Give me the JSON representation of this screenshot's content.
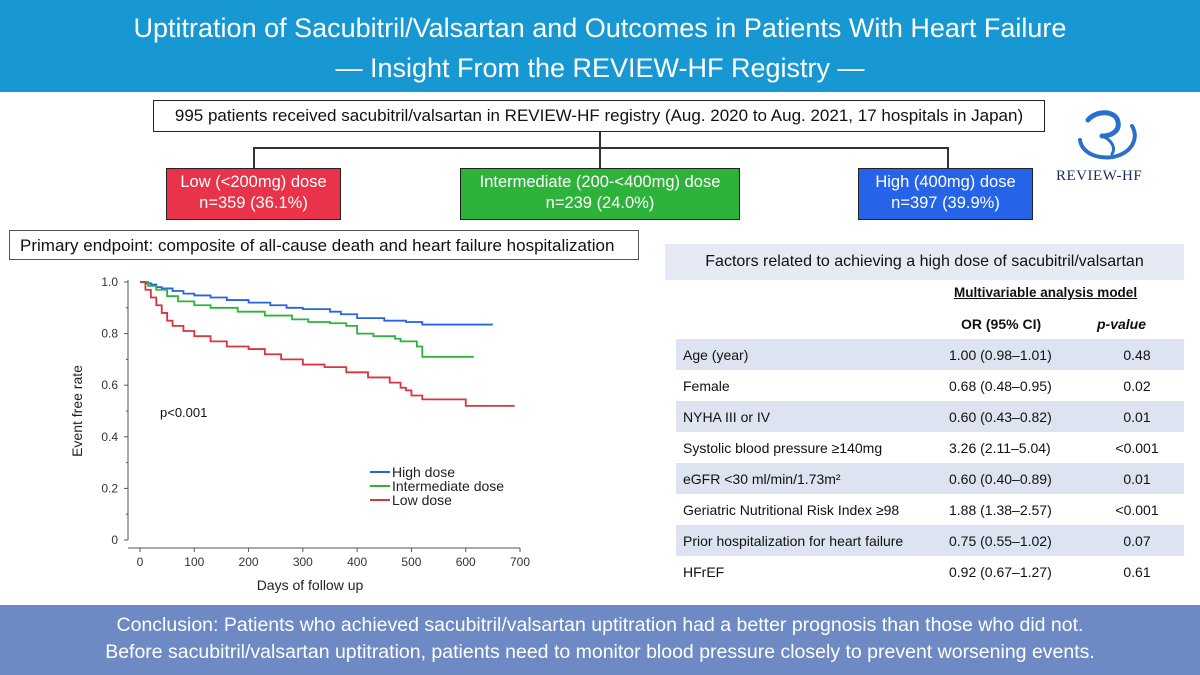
{
  "header": {
    "title_line1": "Uptitration of Sacubitril/Valsartan and Outcomes in Patients With Heart Failure",
    "title_line2": "— Insight From the REVIEW-HF Registry —"
  },
  "summary": "995 patients received sacubitril/valsartan in REVIEW-HF registry (Aug. 2020 to Aug. 2021, 17 hospitals in Japan)",
  "groups": [
    {
      "label": "Low (<200mg) dose",
      "n": "n=359 (36.1%)",
      "color": "#e8334a"
    },
    {
      "label": "Intermediate (200-<400mg) dose",
      "n": "n=239 (24.0%)",
      "color": "#2db33a"
    },
    {
      "label": "High (400mg) dose",
      "n": "n=397 (39.9%)",
      "color": "#2563e8"
    }
  ],
  "logo": {
    "text": "REVIEW-HF",
    "color": "#2a6fc9"
  },
  "endpoint": "Primary endpoint: composite of all-cause death and heart failure hospitalization",
  "chart_data": {
    "type": "line",
    "title": "",
    "xlabel": "Days of follow up",
    "ylabel": "Event free rate",
    "xlim": [
      0,
      700
    ],
    "ylim": [
      0,
      1.0
    ],
    "x_ticks": [
      "0",
      "100",
      "200",
      "300",
      "400",
      "500",
      "600",
      "700"
    ],
    "y_ticks": [
      "0",
      "0.2",
      "0.4",
      "0.6",
      "0.8",
      "1.0"
    ],
    "annotation": "p<0.001",
    "legend_position": "center-right",
    "series": [
      {
        "name": "High dose",
        "color": "#2563e8",
        "x": [
          0,
          10,
          20,
          30,
          40,
          60,
          80,
          100,
          130,
          160,
          200,
          240,
          270,
          300,
          350,
          370,
          400,
          450,
          490,
          520,
          600,
          640,
          650
        ],
        "y": [
          1.0,
          0.995,
          0.99,
          0.98,
          0.975,
          0.965,
          0.955,
          0.948,
          0.94,
          0.93,
          0.92,
          0.91,
          0.9,
          0.895,
          0.885,
          0.875,
          0.86,
          0.85,
          0.845,
          0.835,
          0.835,
          0.835,
          0.835
        ]
      },
      {
        "name": "Intermediate dose",
        "color": "#2db33a",
        "x": [
          0,
          15,
          30,
          50,
          70,
          100,
          130,
          180,
          230,
          280,
          310,
          350,
          380,
          400,
          430,
          470,
          480,
          510,
          520,
          540,
          560,
          600,
          615
        ],
        "y": [
          1.0,
          0.985,
          0.97,
          0.945,
          0.925,
          0.91,
          0.9,
          0.885,
          0.87,
          0.855,
          0.845,
          0.84,
          0.83,
          0.8,
          0.79,
          0.78,
          0.77,
          0.75,
          0.71,
          0.71,
          0.71,
          0.71,
          0.71
        ]
      },
      {
        "name": "Low dose",
        "color": "#d9343f",
        "x": [
          0,
          10,
          20,
          30,
          40,
          50,
          60,
          80,
          100,
          130,
          160,
          200,
          230,
          260,
          300,
          340,
          380,
          420,
          460,
          480,
          490,
          500,
          520,
          560,
          600,
          650,
          690
        ],
        "y": [
          1.0,
          0.97,
          0.94,
          0.91,
          0.88,
          0.85,
          0.83,
          0.81,
          0.79,
          0.77,
          0.75,
          0.74,
          0.72,
          0.7,
          0.68,
          0.67,
          0.65,
          0.63,
          0.61,
          0.59,
          0.58,
          0.56,
          0.545,
          0.545,
          0.52,
          0.52,
          0.52
        ]
      }
    ]
  },
  "factors": {
    "title": "Factors related to achieving a high dose of sacubitril/valsartan",
    "model_title": "Multivariable analysis model",
    "col_or": "OR (95% CI)",
    "col_p": "p-value",
    "rows": [
      {
        "label": "Age (year)",
        "or": "1.00 (0.98–1.01)",
        "p": "0.48"
      },
      {
        "label": "Female",
        "or": "0.68 (0.48–0.95)",
        "p": "0.02"
      },
      {
        "label": "NYHA III or IV",
        "or": "0.60 (0.43–0.82)",
        "p": "0.01"
      },
      {
        "label": "Systolic blood pressure ≥140mg",
        "or": "3.26 (2.11–5.04)",
        "p": "<0.001"
      },
      {
        "label": "eGFR <30 ml/min/1.73m²",
        "or": "0.60 (0.40–0.89)",
        "p": "0.01"
      },
      {
        "label": "Geriatric Nutritional Risk Index ≥98",
        "or": "1.88 (1.38–2.57)",
        "p": "<0.001"
      },
      {
        "label": "Prior hospitalization for heart failure",
        "or": "0.75 (0.55–1.02)",
        "p": "0.07"
      },
      {
        "label": "HFrEF",
        "or": "0.92 (0.67–1.27)",
        "p": "0.61"
      }
    ]
  },
  "conclusion": {
    "line1": "Conclusion: Patients who achieved sacubitril/valsartan uptitration had a better prognosis than those who did not.",
    "line2": "Before sacubitril/valsartan uptitration, patients need to monitor blood pressure closely to prevent worsening events."
  }
}
